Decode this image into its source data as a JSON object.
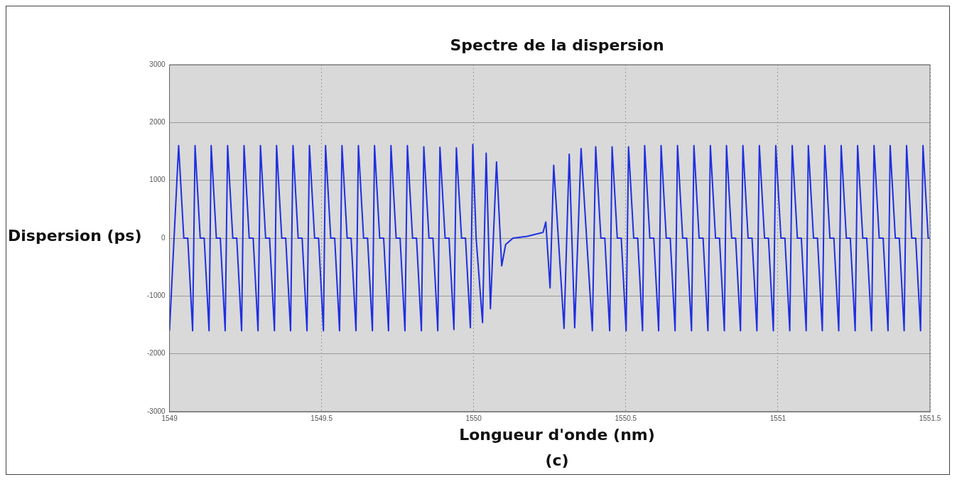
{
  "chart_data": {
    "type": "line",
    "title": "Spectre de la dispersion",
    "xlabel": "Longueur d'onde (nm)",
    "ylabel": "Dispersion (ps)",
    "annotations": [
      "(c)"
    ],
    "xlim": [
      1549,
      1551.5
    ],
    "xticks": [
      1549,
      1549.5,
      1550,
      1550.5,
      1551,
      1551.5
    ],
    "ylim": [
      -3000,
      3000
    ],
    "yticks": [
      -3000,
      -2000,
      -1000,
      0,
      1000,
      2000,
      3000
    ],
    "grid": true,
    "legend": false,
    "marker": "none",
    "line_style": "solid",
    "series": [
      {
        "color": "#1f2fe0",
        "x": [
          1549,
          1549.03,
          1549.047,
          1549.06,
          1549.076,
          1549.084,
          1549.101,
          1549.114,
          1549.13,
          1549.137,
          1549.154,
          1549.167,
          1549.183,
          1549.191,
          1549.208,
          1549.221,
          1549.237,
          1549.245,
          1549.262,
          1549.275,
          1549.291,
          1549.299,
          1549.316,
          1549.329,
          1549.345,
          1549.352,
          1549.369,
          1549.382,
          1549.398,
          1549.406,
          1549.423,
          1549.436,
          1549.452,
          1549.46,
          1549.477,
          1549.49,
          1549.506,
          1549.513,
          1549.53,
          1549.543,
          1549.559,
          1549.567,
          1549.584,
          1549.597,
          1549.613,
          1549.621,
          1549.638,
          1549.651,
          1549.667,
          1549.674,
          1549.691,
          1549.704,
          1549.72,
          1549.728,
          1549.745,
          1549.758,
          1549.774,
          1549.782,
          1549.799,
          1549.812,
          1549.828,
          1549.836,
          1549.853,
          1549.866,
          1549.882,
          1549.889,
          1549.906,
          1549.919,
          1549.935,
          1549.943,
          1549.96,
          1549.973,
          1549.989,
          1549.997,
          1550.008,
          1550.029,
          1550.041,
          1550.055,
          1550.075,
          1550.092,
          1550.105,
          1550.129,
          1550.175,
          1550.228,
          1550.237,
          1550.251,
          1550.263,
          1550.297,
          1550.314,
          1550.332,
          1550.353,
          1550.39,
          1550.401,
          1550.418,
          1550.431,
          1550.447,
          1550.455,
          1550.472,
          1550.485,
          1550.501,
          1550.509,
          1550.526,
          1550.539,
          1550.555,
          1550.562,
          1550.579,
          1550.592,
          1550.608,
          1550.616,
          1550.633,
          1550.646,
          1550.662,
          1550.67,
          1550.687,
          1550.7,
          1550.716,
          1550.724,
          1550.741,
          1550.754,
          1550.77,
          1550.778,
          1550.795,
          1550.808,
          1550.824,
          1550.831,
          1550.848,
          1550.861,
          1550.877,
          1550.885,
          1550.902,
          1550.915,
          1550.931,
          1550.939,
          1550.956,
          1550.969,
          1550.985,
          1550.993,
          1551.01,
          1551.023,
          1551.039,
          1551.047,
          1551.064,
          1551.077,
          1551.093,
          1551.1,
          1551.117,
          1551.13,
          1551.146,
          1551.154,
          1551.171,
          1551.184,
          1551.2,
          1551.208,
          1551.225,
          1551.238,
          1551.254,
          1551.262,
          1551.279,
          1551.292,
          1551.308,
          1551.316,
          1551.333,
          1551.346,
          1551.362,
          1551.369,
          1551.386,
          1551.399,
          1551.415,
          1551.423,
          1551.44,
          1551.453,
          1551.469,
          1551.477,
          1551.494,
          1551.5
        ],
        "values": [
          -1600,
          1600,
          0,
          0,
          -1600,
          1600,
          0,
          0,
          -1600,
          1600,
          0,
          0,
          -1600,
          1600,
          0,
          0,
          -1600,
          1600,
          0,
          0,
          -1600,
          1600,
          0,
          0,
          -1600,
          1600,
          0,
          0,
          -1600,
          1600,
          0,
          0,
          -1600,
          1600,
          0,
          0,
          -1600,
          1600,
          0,
          0,
          -1600,
          1600,
          0,
          0,
          -1600,
          1600,
          0,
          0,
          -1600,
          1600,
          0,
          0,
          -1600,
          1600,
          0,
          0,
          -1600,
          1600,
          0,
          0,
          -1600,
          1580,
          0,
          0,
          -1600,
          1570,
          0,
          0,
          -1580,
          1560,
          0,
          0,
          -1550,
          1620,
          0,
          -1460,
          1470,
          -1220,
          1320,
          -480,
          -110,
          0,
          30,
          100,
          280,
          -860,
          1260,
          -1560,
          1450,
          -1550,
          1550,
          -1600,
          1580,
          0,
          0,
          -1600,
          1580,
          0,
          0,
          -1600,
          1580,
          0,
          0,
          -1600,
          1600,
          0,
          0,
          -1600,
          1600,
          0,
          0,
          -1600,
          1600,
          0,
          0,
          -1600,
          1600,
          0,
          0,
          -1600,
          1600,
          0,
          0,
          -1600,
          1600,
          0,
          0,
          -1600,
          1600,
          0,
          0,
          -1600,
          1600,
          0,
          0,
          -1600,
          1600,
          0,
          0,
          -1600,
          1600,
          0,
          0,
          -1600,
          1600,
          0,
          0,
          -1600,
          1600,
          0,
          0,
          -1600,
          1600,
          0,
          0,
          -1600,
          1600,
          0,
          0,
          -1600,
          1600,
          0,
          0,
          -1600,
          1600,
          0,
          0,
          -1600,
          1600,
          0,
          0,
          -1600,
          1600,
          0,
          0
        ]
      }
    ]
  }
}
